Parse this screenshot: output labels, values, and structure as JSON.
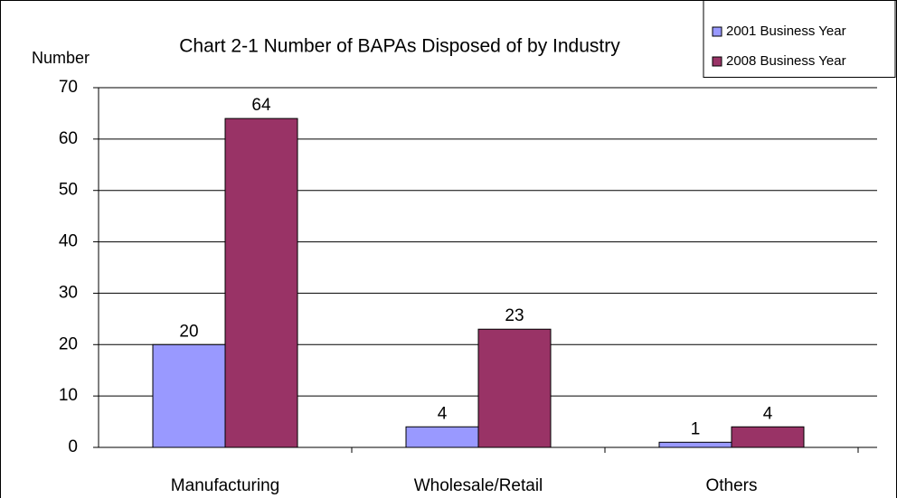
{
  "chart_data": {
    "type": "bar",
    "title": "Chart 2-1 Number of BAPAs Disposed of by Industry",
    "y_label": "Number",
    "categories": [
      "Manufacturing",
      "Wholesale/Retail",
      "Others"
    ],
    "series": [
      {
        "name": "2001 Business Year",
        "color": "#9999ff",
        "values": [
          20,
          4,
          1
        ]
      },
      {
        "name": "2008 Business Year",
        "color": "#993366",
        "values": [
          64,
          23,
          4
        ]
      }
    ],
    "ylim": [
      0,
      70
    ],
    "yticks": [
      0,
      10,
      20,
      30,
      40,
      50,
      60,
      70
    ],
    "grid": true,
    "legend": "top-right"
  }
}
